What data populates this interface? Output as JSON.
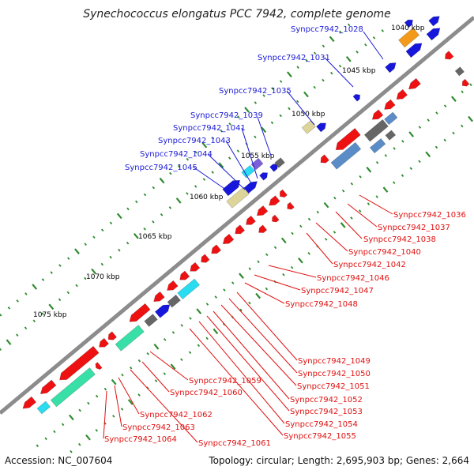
{
  "title": "Synechococcus elongatus PCC 7942, complete genome",
  "footer": {
    "accession": "Accession: NC_007604",
    "summary": "Topology: circular; Length: 2,695,903 bp; Genes: 2,664"
  },
  "colors": {
    "backbone": "#8c8c8c",
    "tick": "#2e8b2e",
    "plus_label": "#1a1ad6",
    "minus_label": "#e01010",
    "cds_red": "#ee1111",
    "blue": "#1616dc",
    "orange": "#f39a1a",
    "steel": "#5a8cc8",
    "gray": "#666666",
    "khaki": "#ddd49a",
    "cyan": "#2adcf0",
    "purple": "#7b5fd8",
    "mint": "#38e0a8"
  },
  "kbp_markers": [
    "1040 kbp",
    "1045 kbp",
    "1050 kbp",
    "1055 kbp",
    "1060 kbp",
    "1065 kbp",
    "1070 kbp",
    "1075 kbp"
  ],
  "plus_strand_labels": [
    "Synpcc7942_1028",
    "Synpcc7942_1031",
    "Synpcc7942_1035",
    "Synpcc7942_1039",
    "Synpcc7942_1041",
    "Synpcc7942_1043",
    "Synpcc7942_1044",
    "Synpcc7942_1045"
  ],
  "minus_strand_labels": [
    "Synpcc7942_1036",
    "Synpcc7942_1037",
    "Synpcc7942_1038",
    "Synpcc7942_1040",
    "Synpcc7942_1042",
    "Synpcc7942_1046",
    "Synpcc7942_1047",
    "Synpcc7942_1048",
    "Synpcc7942_1049",
    "Synpcc7942_1050",
    "Synpcc7942_1051",
    "Synpcc7942_1052",
    "Synpcc7942_1053",
    "Synpcc7942_1054",
    "Synpcc7942_1055",
    "Synpcc7942_1059",
    "Synpcc7942_1060",
    "Synpcc7942_1061",
    "Synpcc7942_1062",
    "Synpcc7942_1063",
    "Synpcc7942_1064"
  ]
}
